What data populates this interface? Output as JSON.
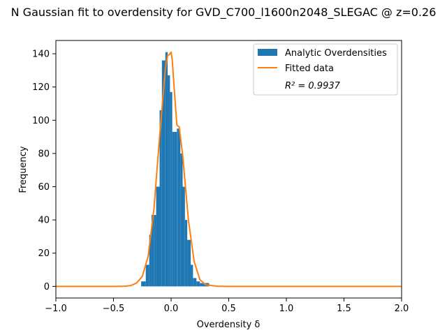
{
  "chart_data": {
    "type": "bar",
    "title": "N Gaussian fit to overdensity for GVD_C700_l1600n2048_SLEGAC @ z=0.26",
    "xlabel": "Overdensity δ",
    "ylabel": "Frequency",
    "xlim": [
      -1.0,
      2.0
    ],
    "ylim": [
      -7,
      148
    ],
    "xticks": [
      "−1.0",
      "−0.5",
      "0.0",
      "0.5",
      "1.0",
      "1.5",
      "2.0"
    ],
    "xtick_values": [
      -1.0,
      -0.5,
      0.0,
      0.5,
      1.0,
      1.5,
      2.0
    ],
    "yticks": [
      "0",
      "20",
      "40",
      "60",
      "80",
      "100",
      "120",
      "140"
    ],
    "ytick_values": [
      0,
      20,
      40,
      60,
      80,
      100,
      120,
      140
    ],
    "grid": false,
    "legend_position": "top-right",
    "histogram": {
      "name": "Analytic Overdensities",
      "color": "#1f77b4",
      "bin_edges": [
        -0.26,
        -0.22,
        -0.19,
        -0.17,
        -0.15,
        -0.13,
        -0.1,
        -0.08,
        -0.05,
        -0.03,
        -0.01,
        0.01,
        0.03,
        0.05,
        0.06,
        0.08,
        0.1,
        0.12,
        0.14,
        0.17,
        0.19,
        0.22,
        0.25,
        0.28,
        0.33
      ],
      "counts": [
        3,
        13,
        31,
        43,
        43,
        60,
        106,
        136,
        141,
        127,
        117,
        93,
        93,
        95,
        95,
        80,
        60,
        40,
        28,
        13,
        5,
        3,
        2,
        2
      ]
    },
    "fit": {
      "name": "Fitted data",
      "color": "#ff7f0e",
      "x": [
        -1.0,
        -0.5,
        -0.4,
        -0.35,
        -0.3,
        -0.25,
        -0.2,
        -0.15,
        -0.1,
        -0.05,
        -0.03,
        -0.015,
        0.0,
        0.01,
        0.03,
        0.05,
        0.07,
        0.1,
        0.15,
        0.2,
        0.25,
        0.3,
        0.4,
        0.5,
        1.0,
        1.5,
        2.0
      ],
      "y": [
        0,
        0,
        0.1,
        0.5,
        2,
        6,
        18,
        46,
        90,
        131,
        139,
        139.5,
        141,
        136,
        116,
        97,
        96,
        79,
        40,
        15,
        4,
        1,
        0.1,
        0,
        0,
        0,
        0
      ]
    },
    "annotation": "R² = 0.9937"
  }
}
